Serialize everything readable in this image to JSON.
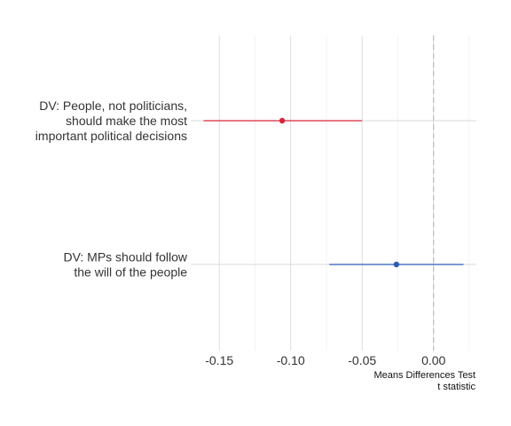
{
  "chart_data": {
    "type": "scatter",
    "title": "",
    "xlabel": [
      "Means Differences Test",
      "t statistic"
    ],
    "ylabel": "",
    "xlim": [
      -0.17,
      0.03
    ],
    "x_ticks": [
      -0.15,
      -0.1,
      -0.05,
      0.0
    ],
    "x_tick_labels": [
      "-0.15",
      "-0.10",
      "-0.05",
      "0.00"
    ],
    "x_minor_ticks": [
      -0.125,
      -0.075,
      -0.025,
      0.025
    ],
    "reference_line": 0.0,
    "grid": true,
    "legend": "none",
    "categories": [
      {
        "label_lines": [
          "DV: People, not politicians,",
          "should make the most",
          "important political decisions"
        ],
        "estimate": -0.106,
        "ci_low": -0.161,
        "ci_high": -0.05,
        "color": "#d7263d"
      },
      {
        "label_lines": [
          "DV: MPs should follow",
          "the will of the people"
        ],
        "estimate": -0.026,
        "ci_low": -0.073,
        "ci_high": 0.021,
        "color": "#2c5bb8"
      }
    ]
  }
}
